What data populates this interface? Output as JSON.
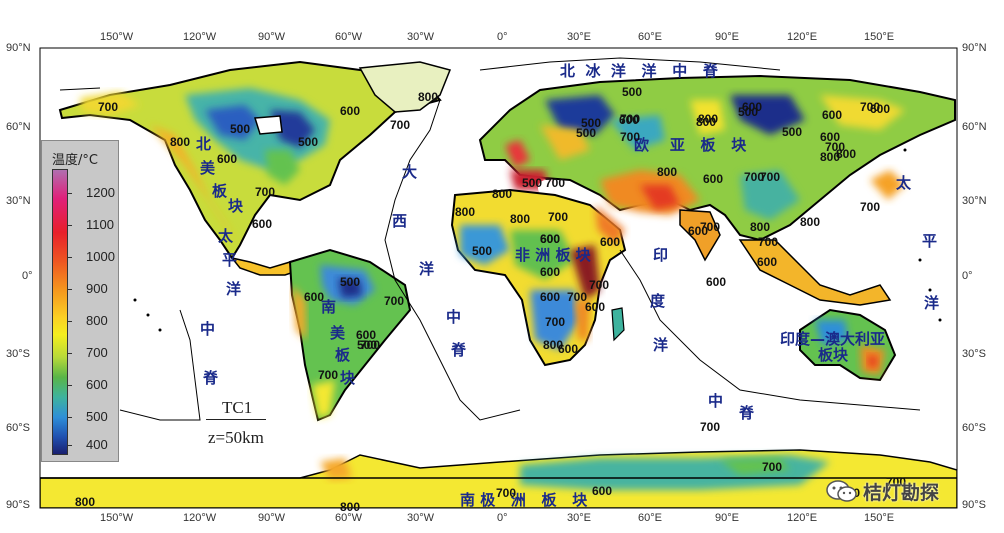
{
  "map": {
    "lon_ticks": [
      "150°W",
      "120°W",
      "90°W",
      "60°W",
      "30°W",
      "0°",
      "30°E",
      "60°E",
      "90°E",
      "120°E",
      "150°E"
    ],
    "lat_ticks": [
      "90°N",
      "60°N",
      "30°N",
      "0°",
      "30°S",
      "60°S",
      "90°S"
    ],
    "model_label": "TC1",
    "depth_label": "z=50km",
    "region_labels": {
      "north_america": [
        "北",
        "美",
        "板",
        "块"
      ],
      "south_america": [
        "南",
        "美",
        "板",
        "块"
      ],
      "africa": "非 洲 板 块",
      "eurasia": "欧    亚   板   块",
      "indo_australia": "印度—澳大利亚",
      "indo_australia_2": "板块",
      "antarctica": "南 极   洲   板   块",
      "arctic_ridge": "北  冰  洋   洋   中   脊",
      "pacific_ridge": [
        "太",
        "平",
        "洋",
        "中",
        "脊"
      ],
      "atlantic_ridge": [
        "大",
        "西",
        "洋",
        "中",
        "脊"
      ],
      "pacific_right": [
        "太",
        "平",
        "洋"
      ],
      "indian_ridge": [
        "印",
        "度",
        "洋",
        "中",
        "脊"
      ]
    },
    "contour_values": [
      "700",
      "800",
      "500",
      "600",
      "500",
      "600",
      "700",
      "700",
      "600",
      "500",
      "600",
      "700",
      "600",
      "500",
      "700",
      "800",
      "500",
      "600",
      "800",
      "700",
      "600",
      "500",
      "600",
      "500",
      "800",
      "600",
      "700",
      "600",
      "600",
      "700",
      "800",
      "700",
      "800",
      "600",
      "700",
      "600",
      "500",
      "700",
      "600",
      "700",
      "500",
      "700",
      "700",
      "800",
      "800",
      "600",
      "700",
      "800",
      "800",
      "600",
      "700",
      "600",
      "700",
      "500",
      "600",
      "800",
      "800",
      "700",
      "600",
      "700",
      "600",
      "500",
      "700",
      "800",
      "600",
      "800",
      "700",
      "700",
      "600",
      "700",
      "800",
      "600",
      "700"
    ]
  },
  "legend": {
    "title": "温度/°C",
    "ticks": [
      "1200",
      "1100",
      "1000",
      "900",
      "800",
      "700",
      "600",
      "500",
      "400"
    ]
  },
  "watermark": {
    "text": "桔灯勘探"
  },
  "colors": {
    "ocean": "#ffffff",
    "coast": "#000000",
    "label_blue": "#1a2a8a",
    "low": "#1a2070",
    "high": "#e8202a"
  }
}
